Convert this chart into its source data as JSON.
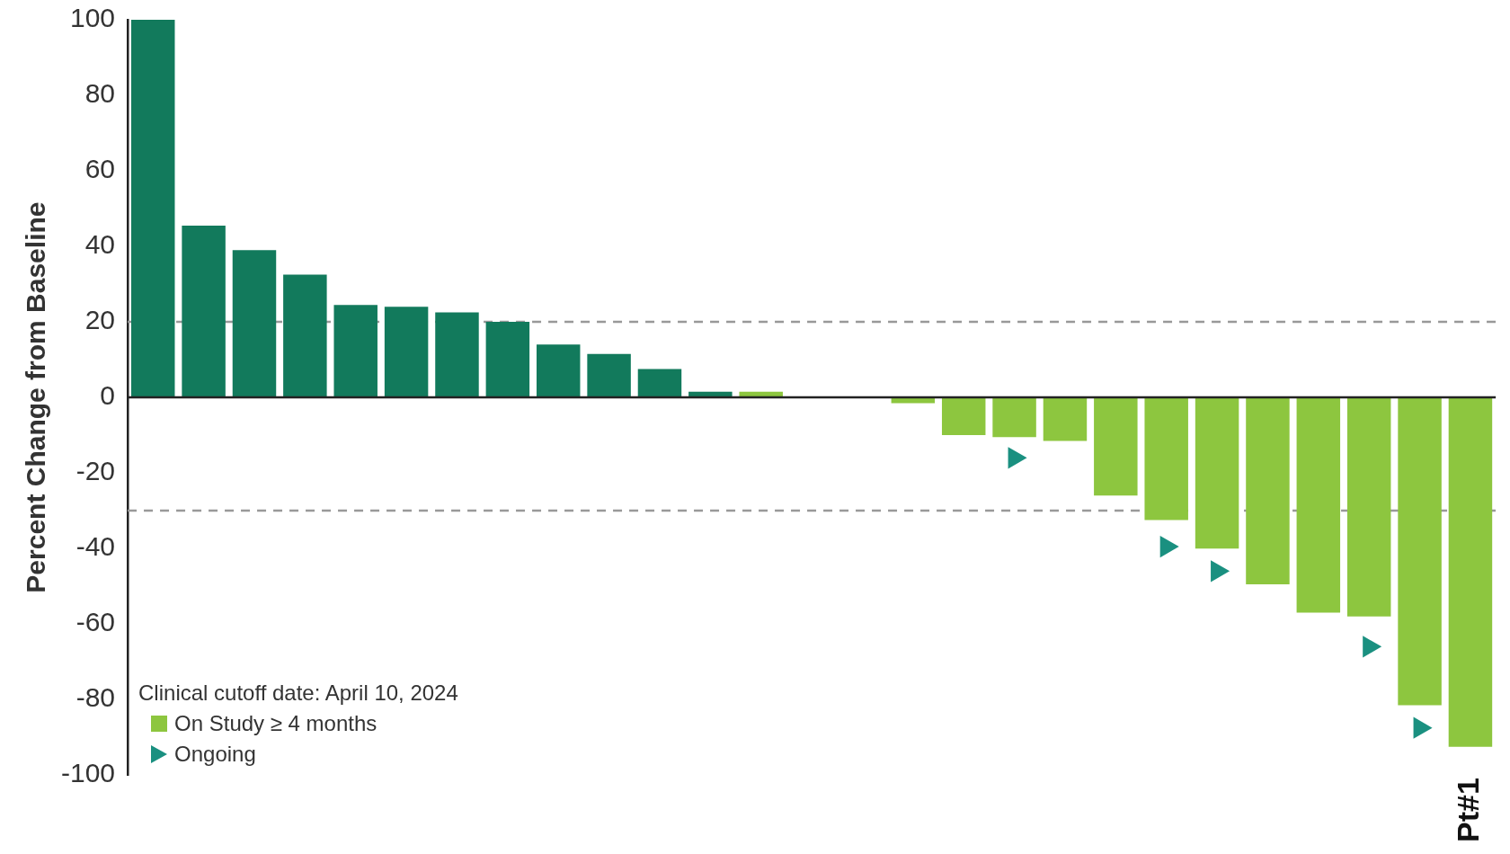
{
  "chart_data": {
    "type": "bar",
    "stacked": true,
    "ylabel": "Percent Change from Baseline",
    "categories": [
      null,
      null,
      null,
      null,
      null,
      null,
      null,
      null,
      null,
      null,
      null,
      null,
      null,
      null,
      null,
      null,
      null,
      null,
      null,
      null,
      null,
      null,
      null,
      null,
      null,
      null,
      "Pt#1"
    ],
    "series": [
      {
        "color": "#127a5c",
        "values": [
          100,
          45.5,
          39,
          32.5,
          24.5,
          24,
          22.5,
          20,
          14,
          11.5,
          7.5,
          1.5,
          null,
          null,
          null,
          null,
          null,
          null,
          null,
          null,
          null,
          null,
          null,
          null,
          null,
          null,
          null
        ]
      },
      {
        "name": "On Study ≥ 4 months",
        "color": "#8dc63f",
        "values": [
          null,
          null,
          null,
          null,
          null,
          null,
          null,
          null,
          null,
          null,
          null,
          null,
          1.5,
          0,
          0,
          -1.5,
          -10,
          -10.5,
          -11.5,
          -26,
          -32.5,
          -40,
          -49.5,
          -57,
          -58,
          -81.5,
          -92.5
        ]
      },
      {
        "name": "Ongoing",
        "type": "scatter",
        "marker": "triangle",
        "color": "#1a9080",
        "values": [
          null,
          null,
          null,
          null,
          null,
          null,
          null,
          null,
          null,
          null,
          null,
          null,
          null,
          null,
          null,
          null,
          null,
          -16,
          null,
          null,
          -39.5,
          -46,
          null,
          null,
          -66,
          -87.5,
          null
        ]
      }
    ],
    "ylim": [
      -100,
      100
    ],
    "yticks": [
      -100,
      -80,
      -60,
      -40,
      -20,
      0,
      20,
      40,
      60,
      80,
      100
    ],
    "grid": false,
    "legend": "bottom left",
    "ref_lines": [
      {
        "axis": "y",
        "value": 20,
        "color": "#999999",
        "line_style": "dashed"
      },
      {
        "axis": "y",
        "value": -30,
        "color": "#999999",
        "line_style": "dashed"
      }
    ],
    "annotations": [
      "Clinical cutoff date: April 10, 2024"
    ]
  }
}
